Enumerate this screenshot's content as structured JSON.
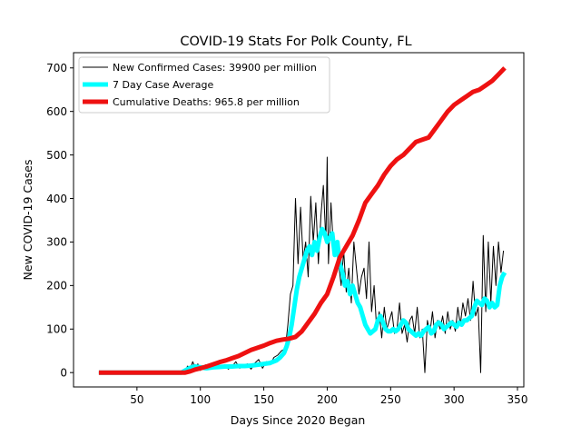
{
  "chart_data": {
    "type": "line",
    "title": "COVID-19 Stats For Polk County, FL",
    "xlabel": "Days Since 2020 Began",
    "ylabel": "New COVID-19 Cases",
    "xlim": [
      0,
      355
    ],
    "ylim": [
      -33,
      735
    ],
    "xticks": [
      50,
      100,
      150,
      200,
      250,
      300,
      350
    ],
    "yticks": [
      0,
      100,
      200,
      300,
      400,
      500,
      600,
      700
    ],
    "grid": false,
    "legend_position": "top-left",
    "series": [
      {
        "name": "New Confirmed Cases: 39900 per million",
        "color": "#000000",
        "width": 1,
        "x": [
          20,
          30,
          40,
          50,
          60,
          70,
          80,
          85,
          88,
          90,
          92,
          94,
          96,
          98,
          100,
          102,
          104,
          106,
          108,
          110,
          113,
          116,
          119,
          122,
          125,
          128,
          131,
          134,
          137,
          140,
          143,
          146,
          149,
          152,
          155,
          158,
          161,
          164,
          167,
          169,
          171,
          173,
          175,
          177,
          179,
          181,
          183,
          185,
          187,
          189,
          191,
          193,
          195,
          197,
          199,
          200,
          201,
          203,
          205,
          207,
          209,
          211,
          213,
          215,
          217,
          219,
          221,
          223,
          225,
          227,
          229,
          231,
          233,
          235,
          237,
          239,
          241,
          243,
          245,
          247,
          249,
          251,
          253,
          255,
          257,
          259,
          261,
          263,
          265,
          267,
          269,
          271,
          273,
          275,
          277,
          279,
          281,
          283,
          285,
          287,
          289,
          291,
          293,
          295,
          297,
          299,
          301,
          303,
          305,
          307,
          309,
          311,
          313,
          315,
          317,
          319,
          321,
          323,
          325,
          327,
          329,
          331,
          333,
          335,
          337,
          339
        ],
        "y": [
          0,
          0,
          0,
          0,
          0,
          0,
          0,
          0,
          5,
          15,
          8,
          25,
          10,
          20,
          5,
          12,
          18,
          8,
          14,
          10,
          20,
          12,
          18,
          8,
          14,
          25,
          10,
          15,
          20,
          8,
          22,
          30,
          10,
          25,
          18,
          35,
          40,
          50,
          55,
          110,
          180,
          200,
          400,
          250,
          380,
          260,
          300,
          220,
          405,
          300,
          390,
          250,
          360,
          430,
          300,
          495,
          250,
          390,
          280,
          300,
          250,
          200,
          280,
          185,
          240,
          160,
          300,
          240,
          180,
          220,
          240,
          170,
          300,
          140,
          200,
          100,
          140,
          80,
          150,
          100,
          120,
          140,
          90,
          100,
          160,
          90,
          110,
          70,
          120,
          130,
          90,
          150,
          80,
          100,
          0,
          120,
          90,
          140,
          80,
          120,
          100,
          130,
          90,
          140,
          100,
          120,
          95,
          150,
          110,
          160,
          130,
          170,
          120,
          210,
          130,
          150,
          0,
          315,
          140,
          300,
          160,
          290,
          200,
          300,
          230,
          280
        ]
      },
      {
        "name": "7 Day Case Average",
        "color": "#00ffff",
        "width": 5,
        "x": [
          20,
          40,
          60,
          80,
          85,
          90,
          93,
          96,
          100,
          105,
          110,
          115,
          120,
          125,
          130,
          135,
          140,
          145,
          150,
          155,
          160,
          163,
          166,
          168,
          170,
          172,
          174,
          176,
          178,
          180,
          182,
          184,
          186,
          188,
          190,
          192,
          194,
          196,
          198,
          200,
          202,
          204,
          206,
          208,
          210,
          212,
          214,
          216,
          218,
          220,
          222,
          224,
          226,
          228,
          230,
          232,
          234,
          236,
          238,
          240,
          242,
          244,
          246,
          248,
          250,
          252,
          254,
          256,
          258,
          260,
          262,
          264,
          266,
          268,
          270,
          272,
          274,
          276,
          278,
          280,
          282,
          284,
          286,
          288,
          290,
          292,
          294,
          296,
          298,
          300,
          302,
          304,
          306,
          308,
          310,
          312,
          314,
          316,
          318,
          320,
          322,
          324,
          326,
          328,
          330,
          332,
          334,
          336,
          338,
          340
        ],
        "y": [
          0,
          0,
          0,
          0,
          0,
          8,
          12,
          14,
          12,
          10,
          12,
          13,
          14,
          14,
          15,
          15,
          16,
          18,
          20,
          22,
          28,
          35,
          45,
          60,
          80,
          110,
          150,
          190,
          220,
          240,
          260,
          280,
          290,
          270,
          300,
          280,
          310,
          330,
          320,
          300,
          310,
          320,
          270,
          300,
          250,
          230,
          200,
          210,
          180,
          200,
          180,
          160,
          150,
          130,
          110,
          100,
          90,
          95,
          100,
          120,
          130,
          115,
          100,
          95,
          95,
          100,
          95,
          100,
          110,
          120,
          115,
          100,
          95,
          90,
          85,
          90,
          85,
          95,
          100,
          105,
          90,
          95,
          110,
          115,
          110,
          100,
          105,
          110,
          115,
          110,
          105,
          115,
          110,
          120,
          120,
          125,
          130,
          150,
          165,
          160,
          155,
          170,
          165,
          150,
          160,
          150,
          155,
          200,
          220,
          230
        ]
      },
      {
        "name": "Cumulative Deaths: 965.8 per million",
        "color": "#ee1111",
        "width": 5,
        "x": [
          20,
          40,
          60,
          80,
          88,
          92,
          96,
          100,
          105,
          110,
          115,
          120,
          125,
          130,
          135,
          140,
          145,
          150,
          155,
          160,
          165,
          170,
          175,
          180,
          185,
          190,
          195,
          200,
          205,
          210,
          215,
          220,
          225,
          230,
          235,
          240,
          245,
          250,
          255,
          260,
          265,
          270,
          275,
          280,
          285,
          290,
          295,
          300,
          305,
          310,
          315,
          320,
          325,
          330,
          335,
          340
        ],
        "y": [
          0,
          0,
          0,
          0,
          0,
          3,
          7,
          10,
          14,
          19,
          24,
          28,
          33,
          38,
          45,
          52,
          57,
          62,
          68,
          73,
          76,
          78,
          82,
          95,
          115,
          135,
          160,
          180,
          220,
          265,
          290,
          315,
          350,
          390,
          410,
          430,
          455,
          475,
          490,
          500,
          515,
          530,
          535,
          540,
          560,
          580,
          600,
          615,
          625,
          635,
          645,
          650,
          660,
          670,
          685,
          700
        ]
      }
    ]
  }
}
